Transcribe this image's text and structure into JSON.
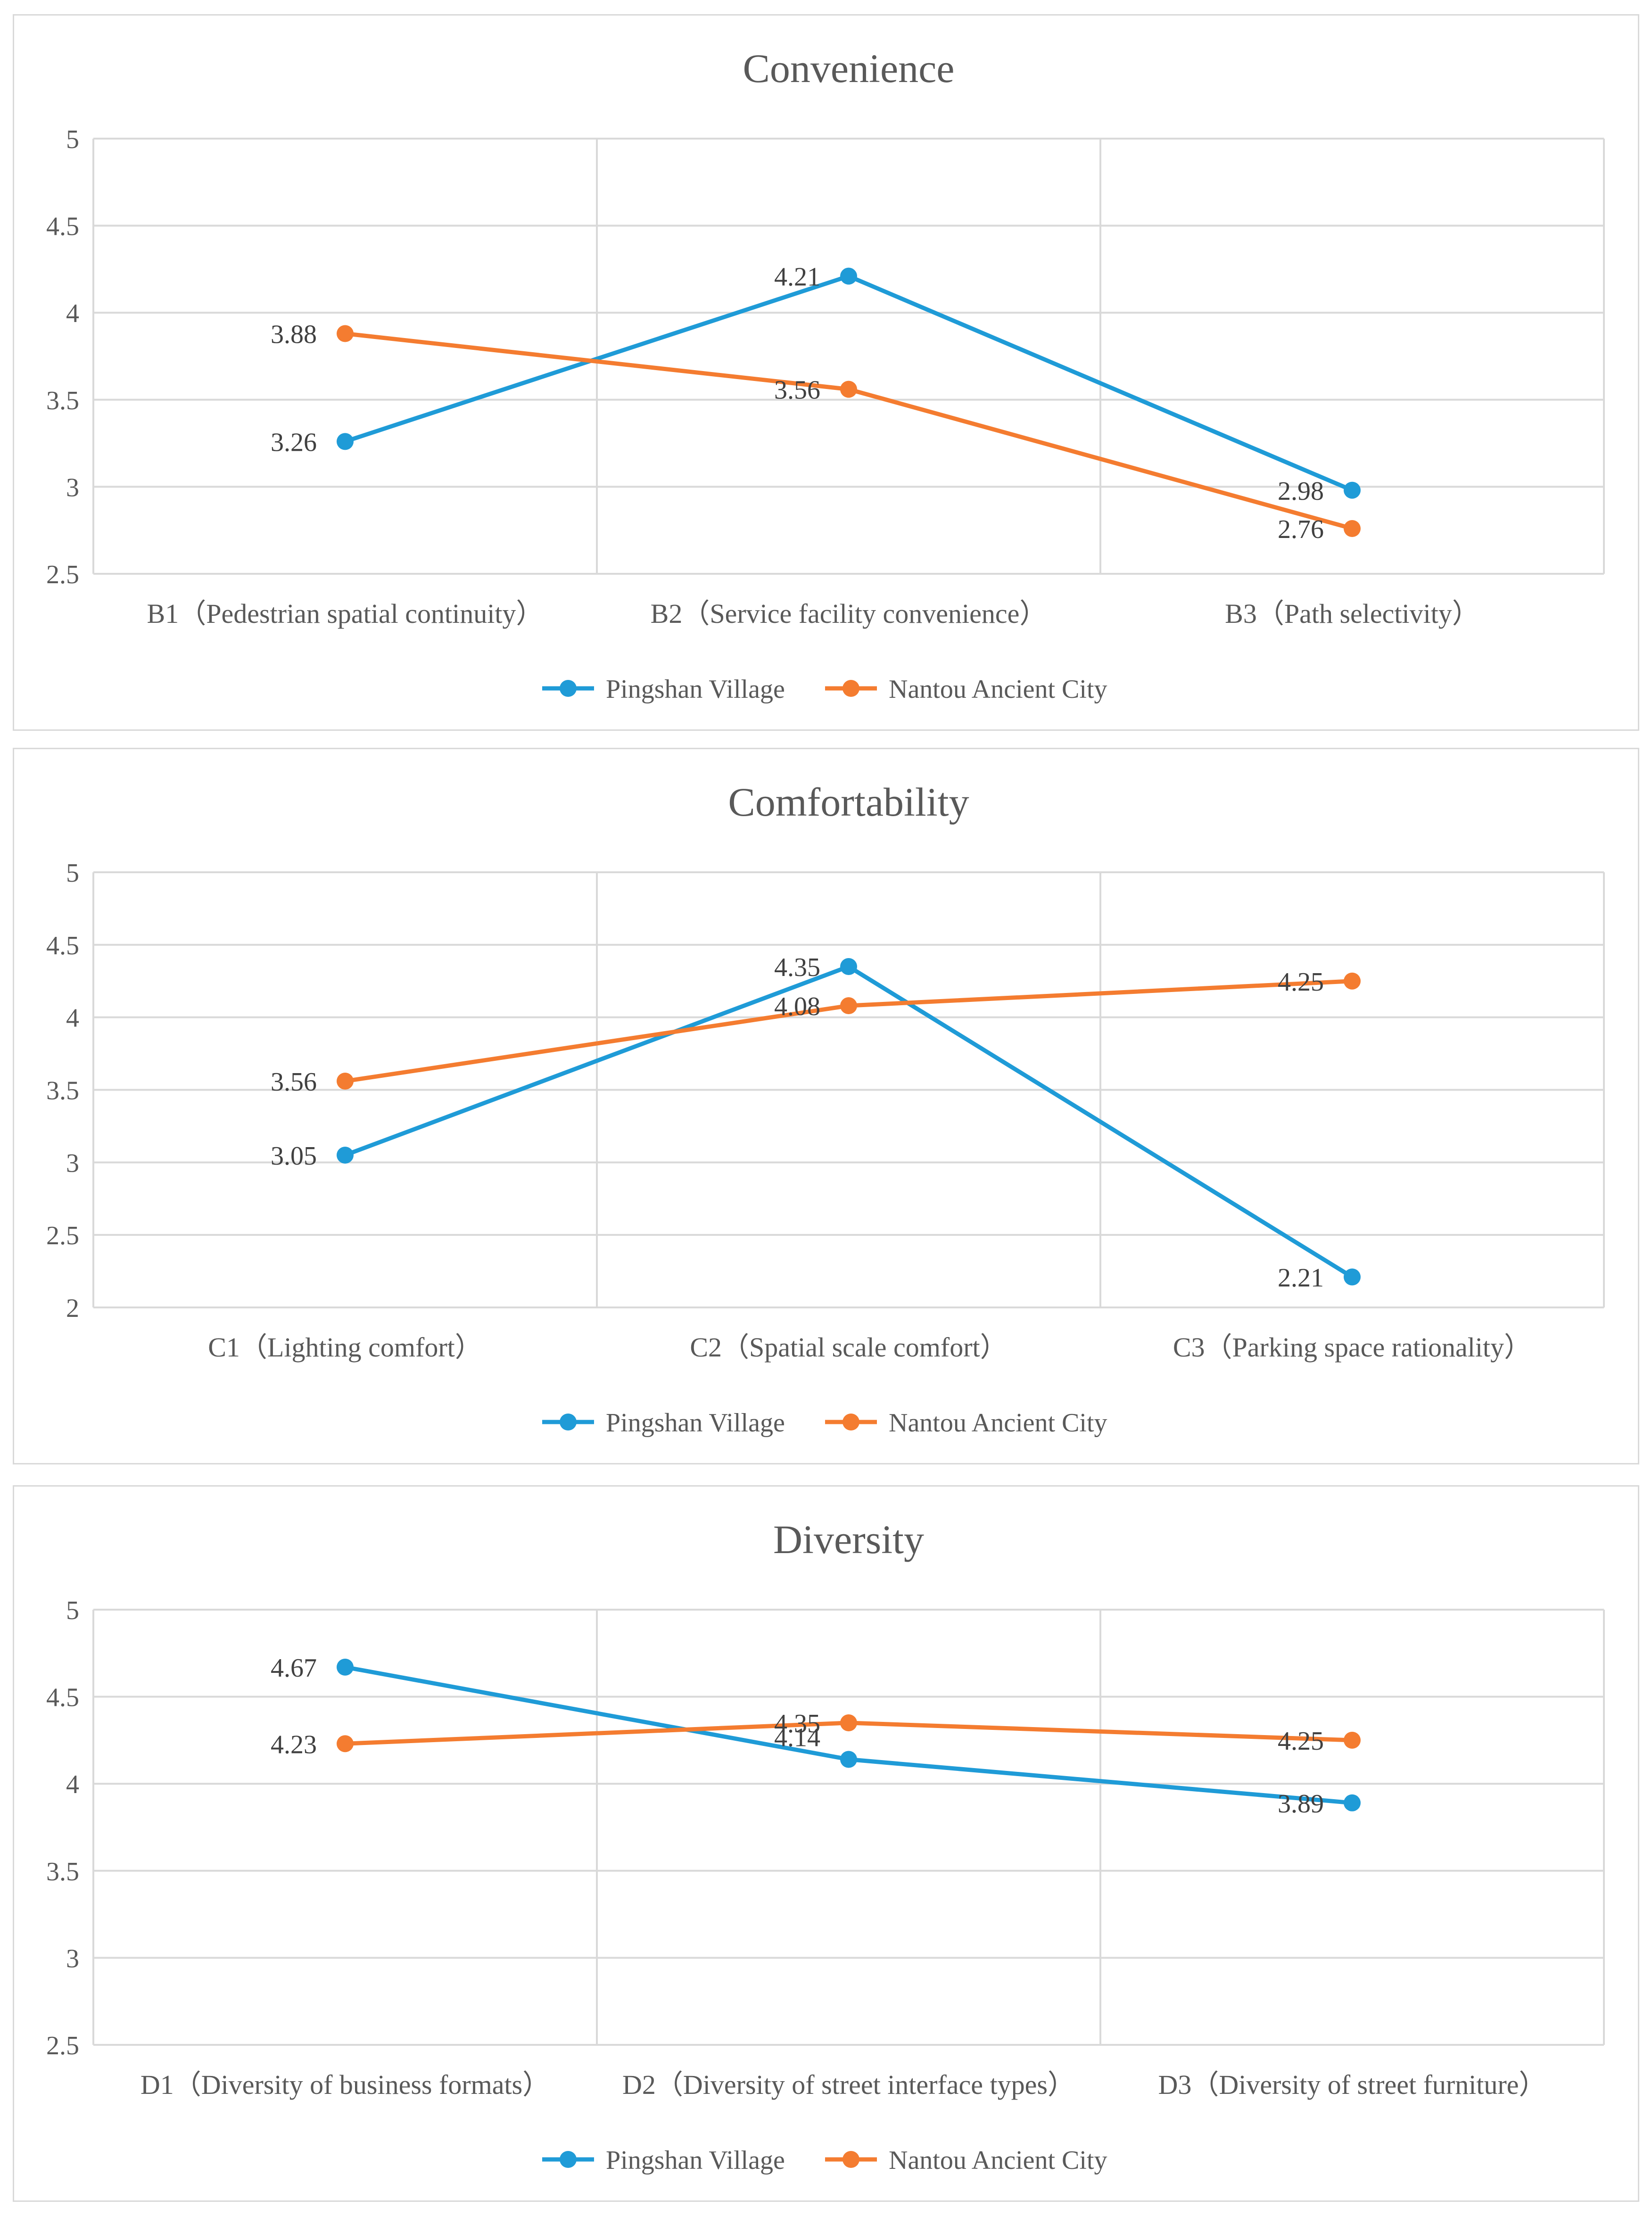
{
  "chart_data": [
    {
      "type": "line",
      "title": "Convenience",
      "categories": [
        "B1（Pedestrian spatial continuity）",
        "B2（Service facility convenience）",
        "B3（Path selectivity）"
      ],
      "ylim": [
        2.5,
        5
      ],
      "yticks": [
        "2.5",
        "3",
        "3.5",
        "4",
        "4.5",
        "5"
      ],
      "grid": true,
      "legend": "bottom",
      "series": [
        {
          "name": "Pingshan Village",
          "values": [
            3.26,
            4.21,
            2.98
          ],
          "labels": [
            "3.26",
            "4.21",
            "2.98"
          ],
          "color": "#1f9bd7"
        },
        {
          "name": "Nantou Ancient City",
          "values": [
            3.88,
            3.56,
            2.76
          ],
          "labels": [
            "3.88",
            "3.56",
            "2.76"
          ],
          "color": "#f47c30"
        }
      ]
    },
    {
      "type": "line",
      "title": "Comfortability",
      "categories": [
        "C1（Lighting comfort）",
        "C2（Spatial scale comfort）",
        "C3（Parking space rationality）"
      ],
      "ylim": [
        2,
        5
      ],
      "yticks": [
        "2",
        "2.5",
        "3",
        "3.5",
        "4",
        "4.5",
        "5"
      ],
      "grid": true,
      "legend": "bottom",
      "series": [
        {
          "name": "Pingshan Village",
          "values": [
            3.05,
            4.35,
            2.21
          ],
          "labels": [
            "3.05",
            "4.35",
            "2.21"
          ],
          "color": "#1f9bd7"
        },
        {
          "name": "Nantou Ancient City",
          "values": [
            3.56,
            4.08,
            4.25
          ],
          "labels": [
            "3.56",
            "4.08",
            "4.25"
          ],
          "color": "#f47c30"
        }
      ]
    },
    {
      "type": "line",
      "title": "Diversity",
      "categories": [
        "D1（Diversity of business formats）",
        "D2（Diversity of street interface types）",
        "D3（Diversity of street furniture）"
      ],
      "ylim": [
        2.5,
        5
      ],
      "yticks": [
        "2.5",
        "3",
        "3.5",
        "4",
        "4.5",
        "5"
      ],
      "grid": true,
      "legend": "bottom",
      "series": [
        {
          "name": "Pingshan Village",
          "values": [
            4.67,
            4.14,
            3.89
          ],
          "labels": [
            "4.67",
            "4.14",
            "3.89"
          ],
          "color": "#1f9bd7"
        },
        {
          "name": "Nantou Ancient City",
          "values": [
            4.23,
            4.35,
            4.25
          ],
          "labels": [
            "4.23",
            "4.35",
            "4.25"
          ],
          "color": "#f47c30"
        }
      ]
    }
  ]
}
